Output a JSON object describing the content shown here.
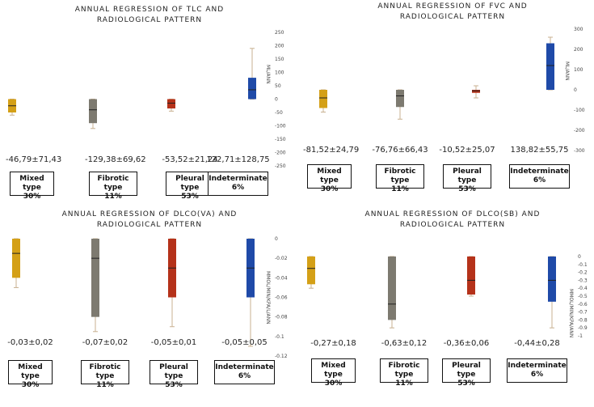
{
  "chart_data": [
    {
      "type": "box",
      "title": "ANNUAL REGRESSION OF TLC AND RADIOLOGICAL PATTERN",
      "title_lines": [
        "ANNUAL REGRESSION OF TLC AND",
        "RADIOLOGICAL PATTERN"
      ],
      "ylabel": "ML/ANN",
      "yticks": [
        "250",
        "200",
        "150",
        "100",
        "50",
        "0",
        "-50",
        "-100",
        "-150",
        "-200",
        "-250"
      ],
      "ylim": [
        -250,
        250
      ],
      "categories": [
        {
          "label": "Mixed type",
          "pct": "30%",
          "stat": "-46,79±71,43",
          "color": "#d4a017",
          "q1": -50,
          "q3": 0,
          "median": -25,
          "min": -60,
          "max": 0
        },
        {
          "label": "Fibrotic type",
          "pct": "11%",
          "stat": "-129,38±69,62",
          "color": "#7d7a70",
          "q1": -90,
          "q3": 0,
          "median": -40,
          "min": -110,
          "max": 0
        },
        {
          "label": "Pleural type",
          "pct": "53%",
          "stat": "-53,52±21,24",
          "color": "#b5321a",
          "q1": -35,
          "q3": 0,
          "median": -15,
          "min": -45,
          "max": 0
        },
        {
          "label": "Indeterminate",
          "pct": "6%",
          "stat": "122,71±128,75",
          "color": "#1f4aa8",
          "q1": 0,
          "q3": 80,
          "median": 35,
          "min": 0,
          "max": 190
        }
      ]
    },
    {
      "type": "box",
      "title": "ANNUAL REGRESSION OF FVC AND RADIOLOGICAL PATTERN",
      "title_lines": [
        "ANNUAL REGRESSION OF FVC AND",
        "RADIOLOGICAL PATTERN"
      ],
      "ylabel": "ML/ANN",
      "yticks": [
        "300",
        "200",
        "100",
        "0",
        "-100",
        "-200",
        "-300"
      ],
      "ylim": [
        -300,
        300
      ],
      "categories": [
        {
          "label": "Mixed type",
          "pct": "30%",
          "stat": "-81,52±24,79",
          "color": "#d4a017",
          "q1": -90,
          "q3": 0,
          "median": -40,
          "min": -110,
          "max": 0
        },
        {
          "label": "Fibrotic type",
          "pct": "11%",
          "stat": "-76,76±66,43",
          "color": "#7d7a70",
          "q1": -85,
          "q3": 0,
          "median": -30,
          "min": -145,
          "max": 0
        },
        {
          "label": "Pleural type",
          "pct": "53%",
          "stat": "-10,52±25,07",
          "color": "#b5321a",
          "q1": -15,
          "q3": 0,
          "median": -5,
          "min": -40,
          "max": 20
        },
        {
          "label": "Indeterminate",
          "pct": "6%",
          "stat": "138,82±55,75",
          "color": "#1f4aa8",
          "q1": 0,
          "q3": 230,
          "median": 120,
          "min": 0,
          "max": 260
        }
      ]
    },
    {
      "type": "box",
      "title": "ANNUAL REGRESSION OF DLCO(VA) AND RADIOLOGICAL PATTERN",
      "title_lines": [
        "ANNUAL REGRESSION OF DLCO(VA) AND",
        "RADIOLOGICAL PATTERN"
      ],
      "ylabel": "MMOL/MIN/KPA/L/ANN",
      "yticks": [
        "0",
        "-0.02",
        "-0.04",
        "-0.06",
        "-0.08",
        "-0.1",
        "-0.12"
      ],
      "ylim": [
        -0.12,
        0
      ],
      "categories": [
        {
          "label": "Mixed type",
          "pct": "30%",
          "stat": "-0,03±0,02",
          "color": "#d4a017",
          "q1": -0.04,
          "q3": 0,
          "median": -0.015,
          "min": -0.05,
          "max": 0
        },
        {
          "label": "Fibrotic type",
          "pct": "11%",
          "stat": "-0,07±0,02",
          "color": "#7d7a70",
          "q1": -0.08,
          "q3": 0,
          "median": -0.02,
          "min": -0.095,
          "max": 0
        },
        {
          "label": "Pleural type",
          "pct": "53%",
          "stat": "-0,05±0,01",
          "color": "#b5321a",
          "q1": -0.06,
          "q3": 0,
          "median": -0.03,
          "min": -0.09,
          "max": 0
        },
        {
          "label": "Indeterminate",
          "pct": "6%",
          "stat": "-0,05±0,05",
          "color": "#1f4aa8",
          "q1": -0.06,
          "q3": 0,
          "median": -0.03,
          "min": -0.11,
          "max": 0
        }
      ]
    },
    {
      "type": "box",
      "title": "ANNUAL REGRESSION OF DLCO(SB) AND RADIOLOGICAL PATTERN",
      "title_lines": [
        "ANNUAL REGRESSION OF DLCO(SB) AND",
        "RADIOLOGICAL PATTERN"
      ],
      "ylabel": "MMOL/MIN/KPA/ANN",
      "yticks": [
        "0",
        "-0.1",
        "-0.2",
        "-0.3",
        "-0.4",
        "-0.5",
        "-0.6",
        "-0.7",
        "-0.8",
        "-0.9",
        "-1"
      ],
      "ylim": [
        -1,
        0
      ],
      "categories": [
        {
          "label": "Mixed type",
          "pct": "30%",
          "stat": "-0,27±0,18",
          "color": "#d4a017",
          "q1": -0.35,
          "q3": 0,
          "median": -0.15,
          "min": -0.4,
          "max": 0
        },
        {
          "label": "Fibrotic type",
          "pct": "11%",
          "stat": "-0,63±0,12",
          "color": "#7d7a70",
          "q1": -0.8,
          "q3": 0,
          "median": -0.6,
          "min": -0.9,
          "max": 0
        },
        {
          "label": "Pleural type",
          "pct": "53%",
          "stat": "-0,36±0,06",
          "color": "#b5321a",
          "q1": -0.48,
          "q3": 0,
          "median": -0.3,
          "min": -0.5,
          "max": 0
        },
        {
          "label": "Indeterminate",
          "pct": "6%",
          "stat": "-0,44±0,28",
          "color": "#1f4aa8",
          "q1": -0.57,
          "q3": 0,
          "median": -0.3,
          "min": -0.9,
          "max": 0
        }
      ]
    }
  ]
}
